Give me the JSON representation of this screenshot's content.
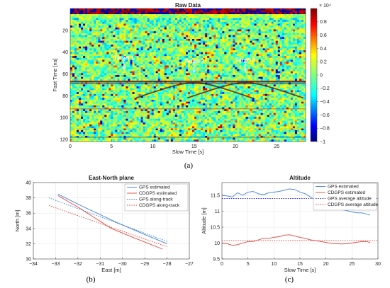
{
  "panels": {
    "a": "(a)",
    "b": "(b)",
    "c": "(c)"
  },
  "chart_data": [
    {
      "type": "heatmap",
      "title": "Raw Data",
      "xlabel": "Slow Time [s]",
      "ylabel": "Fast Time [ns]",
      "xlim": [
        0,
        28.5
      ],
      "ylim": [
        122,
        0
      ],
      "xticks": [
        0,
        5,
        10,
        15,
        20,
        25
      ],
      "yticks": [
        20,
        40,
        60,
        80,
        100,
        120
      ],
      "colorbar": {
        "ticks": [
          0.8,
          0.6,
          0.4,
          0.2,
          0,
          -0.2,
          -0.4,
          -0.6,
          -0.8,
          -1
        ],
        "exponent": "× 10⁴",
        "range": [
          -1,
          1
        ]
      },
      "annotations": [
        {
          "text": "Target 1",
          "x": 6.5,
          "y": 57
        },
        {
          "text": "Target 2",
          "x": 15,
          "y": 60
        },
        {
          "text": "Target 3",
          "x": 21.2,
          "y": 59
        }
      ],
      "surface": {
        "y": 67,
        "hyperbolas": [
          {
            "apex_x": 15,
            "apex_y": 68
          },
          {
            "apex_x": 21.2,
            "apex_y": 68
          }
        ]
      }
    },
    {
      "type": "line",
      "title": "East-North plane",
      "xlabel": "East [m]",
      "ylabel": "North [m]",
      "xlim": [
        -34,
        -27
      ],
      "ylim": [
        30,
        40
      ],
      "xticks": [
        -34,
        -33,
        -32,
        -31,
        -30,
        -29,
        -28,
        -27
      ],
      "yticks": [
        30,
        32,
        34,
        36,
        38,
        40
      ],
      "grid": true,
      "legend": "top-right",
      "series": [
        {
          "name": "GPS estimated",
          "color": "#3b7fd9",
          "dash": "solid",
          "x": [
            -32.9,
            -31.8,
            -31.0,
            -30.2,
            -29.0,
            -28.0
          ],
          "y": [
            38.5,
            36.9,
            35.8,
            34.7,
            33.2,
            32.0
          ]
        },
        {
          "name": "CDGPS estimated",
          "color": "#e0463c",
          "dash": "solid",
          "x": [
            -32.9,
            -32.0,
            -31.2,
            -30.5,
            -29.5,
            -28.2
          ],
          "y": [
            38.3,
            36.8,
            35.3,
            34.0,
            32.8,
            31.3
          ]
        },
        {
          "name": "GPS along-track",
          "color": "#3b7fd9",
          "dash": "dotted",
          "x": [
            -33.3,
            -28.0
          ],
          "y": [
            38.0,
            32.3
          ]
        },
        {
          "name": "CDGPS along-track",
          "color": "#e0463c",
          "dash": "dotted",
          "x": [
            -33.3,
            -28.0
          ],
          "y": [
            37.0,
            31.6
          ]
        }
      ]
    },
    {
      "type": "line",
      "title": "Altitude",
      "xlabel": "Slow Time [s]",
      "ylabel": "Altitude [m]",
      "xlim": [
        0,
        30
      ],
      "ylim": [
        9.5,
        11.9
      ],
      "xticks": [
        0,
        5,
        10,
        15,
        20,
        25,
        30
      ],
      "yticks": [
        9.5,
        10,
        10.5,
        11,
        11.5
      ],
      "grid": true,
      "legend": "top-right",
      "series": [
        {
          "name": "GPS estimated",
          "color": "#3b7fd9",
          "dash": "solid",
          "x": [
            0,
            1,
            2,
            3,
            4,
            5,
            6,
            7,
            8,
            9,
            10,
            11,
            12,
            13,
            14,
            15,
            16,
            17,
            18,
            19,
            20,
            21,
            22,
            23,
            24,
            25,
            26,
            27,
            28,
            28.5
          ],
          "y": [
            11.5,
            11.48,
            11.45,
            11.58,
            11.5,
            11.6,
            11.62,
            11.55,
            11.52,
            11.58,
            11.6,
            11.62,
            11.66,
            11.7,
            11.68,
            11.6,
            11.55,
            11.45,
            11.35,
            11.3,
            11.25,
            11.2,
            11.15,
            11.05,
            11.02,
            10.98,
            10.95,
            10.95,
            10.9,
            10.88
          ]
        },
        {
          "name": "CDGPS estimated",
          "color": "#e0463c",
          "dash": "solid",
          "x": [
            0,
            1,
            2,
            3,
            4,
            5,
            6,
            7,
            8,
            9,
            10,
            11,
            12,
            13,
            14,
            15,
            16,
            17,
            18,
            19,
            20,
            21,
            22,
            23,
            24,
            25,
            26,
            27,
            28,
            28.5
          ],
          "y": [
            10.0,
            9.98,
            9.93,
            9.95,
            10.0,
            10.05,
            10.05,
            10.1,
            10.15,
            10.15,
            10.18,
            10.2,
            10.25,
            10.26,
            10.22,
            10.18,
            10.15,
            10.1,
            10.08,
            10.05,
            10.02,
            9.99,
            9.98,
            9.97,
            9.98,
            10.0,
            10.03,
            10.05,
            10.04,
            10.02
          ]
        },
        {
          "name": "GPS average altitude",
          "color": "#3b3bd9",
          "dash": "dotted",
          "x": [
            0,
            30
          ],
          "y": [
            11.4,
            11.4
          ]
        },
        {
          "name": "CDGPS average altitude",
          "color": "#e0463c",
          "dash": "dotted",
          "x": [
            0,
            30
          ],
          "y": [
            10.08,
            10.08
          ]
        }
      ]
    }
  ]
}
